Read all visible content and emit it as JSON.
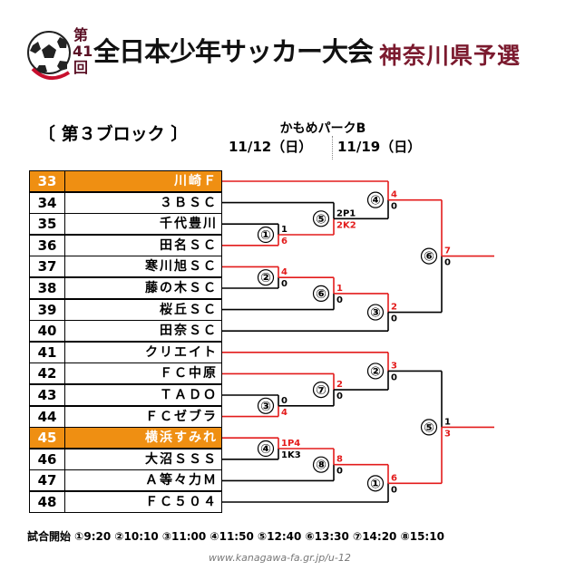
{
  "header": {
    "edition_top": "第",
    "edition_num": "41",
    "edition_bottom": "回",
    "title": "全日本少年サッカー大会",
    "subtitle": "神奈川県予選"
  },
  "block_label": "〔 第３ブロック 〕",
  "venue": "かもめパークB",
  "dates": [
    "11/12（日）",
    "11/19（日）"
  ],
  "teams": [
    {
      "seed": "33",
      "name": "川崎Ｆ",
      "bye": true
    },
    {
      "seed": "34",
      "name": "３ＢＳＣ"
    },
    {
      "seed": "35",
      "name": "千代豊川"
    },
    {
      "seed": "36",
      "name": "田名ＳＣ"
    },
    {
      "seed": "37",
      "name": "寒川旭ＳＣ"
    },
    {
      "seed": "38",
      "name": "藤の木ＳＣ"
    },
    {
      "seed": "39",
      "name": "桜丘ＳＣ"
    },
    {
      "seed": "40",
      "name": "田奈ＳＣ"
    },
    {
      "seed": "41",
      "name": "クリエイト"
    },
    {
      "seed": "42",
      "name": "ＦＣ中原"
    },
    {
      "seed": "43",
      "name": "ＴＡＤＯ"
    },
    {
      "seed": "44",
      "name": "ＦＣゼブラ"
    },
    {
      "seed": "45",
      "name": "横浜すみれ",
      "bye": true
    },
    {
      "seed": "46",
      "name": "大沼ＳＳＳ"
    },
    {
      "seed": "47",
      "name": "Ａ等々力Ｍ"
    },
    {
      "seed": "48",
      "name": "ＦＣ５０４"
    }
  ],
  "matches": [
    {
      "no": "①",
      "round": 1,
      "slots": [
        2,
        3
      ],
      "scores": [
        "1",
        "6"
      ],
      "winner": 1
    },
    {
      "no": "②",
      "round": 1,
      "slots": [
        4,
        5
      ],
      "scores": [
        "4",
        "0"
      ],
      "winner": 0
    },
    {
      "no": "③",
      "round": 1,
      "slots": [
        10,
        11
      ],
      "scores": [
        "0",
        "4"
      ],
      "winner": 1
    },
    {
      "no": "④",
      "round": 1,
      "slots": [
        12,
        13
      ],
      "scores": [
        "1P4",
        "1K3"
      ],
      "winner": 0
    },
    {
      "no": "⑤",
      "round": 2,
      "slots": [
        1,
        "m1"
      ],
      "scores": [
        "2P1",
        "2K2"
      ],
      "winner": 1
    },
    {
      "no": "⑥",
      "round": 2,
      "slots": [
        "m2",
        6
      ],
      "scores": [
        "1",
        "0"
      ],
      "winner": 0
    },
    {
      "no": "⑦",
      "round": 2,
      "slots": [
        9,
        "m3"
      ],
      "scores": [
        "2",
        "0"
      ],
      "winner": 0
    },
    {
      "no": "⑧",
      "round": 2,
      "slots": [
        "m4",
        14
      ],
      "scores": [
        "8",
        "0"
      ],
      "winner": 0
    },
    {
      "no": "④",
      "round": 3,
      "slots": [
        0,
        "m5"
      ],
      "scores": [
        "4",
        "0"
      ],
      "winner": 0
    },
    {
      "no": "③",
      "round": 3,
      "slots": [
        "m6",
        7
      ],
      "scores": [
        "2",
        "0"
      ],
      "winner": 0
    },
    {
      "no": "②",
      "round": 3,
      "slots": [
        8,
        "m7"
      ],
      "scores": [
        "3",
        "0"
      ],
      "winner": 0
    },
    {
      "no": "①",
      "round": 3,
      "slots": [
        "m8",
        15
      ],
      "scores": [
        "6",
        "0"
      ],
      "winner": 0
    },
    {
      "no": "⑥",
      "round": 4,
      "slots": [
        "m9",
        "m10"
      ],
      "scores": [
        "7",
        "0"
      ],
      "winner": 0
    },
    {
      "no": "⑤",
      "round": 4,
      "slots": [
        "m11",
        "m12"
      ],
      "scores": [
        "1",
        "3"
      ],
      "winner": 1
    }
  ],
  "schedule": "試合開始 ①9:20 ②10:10 ③11:00 ④11:50 ⑤12:40 ⑥13:30 ⑦14:20 ⑧15:10",
  "url": "www.kanagawa-fa.gr.jp/u-12",
  "colors": {
    "winner_line": "#e31b1b",
    "loser_line": "#000000",
    "bye_fill": "#ef8f12",
    "title_accent": "#7b1a2e"
  }
}
